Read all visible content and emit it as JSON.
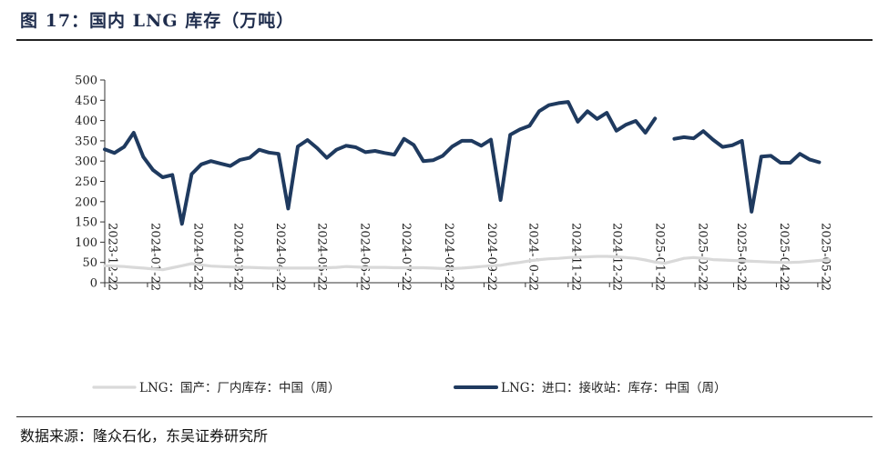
{
  "title": "图 17：国内 LNG 库存（万吨）",
  "source": "数据来源：隆众石化，东吴证券研究所",
  "colors": {
    "domestic": "#d9d9d9",
    "import": "#1f3a5f",
    "axis": "#333333",
    "title": "#1f2d4d"
  },
  "chart_data": {
    "type": "line",
    "title": "",
    "xlabel": "",
    "ylabel": "",
    "ylim": [
      0,
      500
    ],
    "yticks": [
      "0",
      "50",
      "100",
      "150",
      "200",
      "250",
      "300",
      "350",
      "400",
      "450",
      "500"
    ],
    "xtick_labels": [
      "2023-12-22",
      "2024-01-22",
      "2024-02-22",
      "2024-03-22",
      "2024-04-22",
      "2024-05-22",
      "2024-06-22",
      "2024-07-22",
      "2024-08-22",
      "2024-09-22",
      "2024-10-22",
      "2024-11-22",
      "2024-12-22",
      "2025-01-22",
      "2025-02-22",
      "2025-03-22",
      "2025-04-22",
      "2025-05-22"
    ],
    "grid": false,
    "legend": "bottom",
    "series": [
      {
        "name": "LNG：国产：厂内库存：中国（周）",
        "points": [
          [
            "2023-12-22",
            42
          ],
          [
            "2023-12-29",
            41
          ],
          [
            "2024-01-05",
            40
          ],
          [
            "2024-01-12",
            38
          ],
          [
            "2024-01-19",
            36
          ],
          [
            "2024-01-26",
            34
          ],
          [
            "2024-02-02",
            32
          ],
          [
            "2024-02-09",
            37
          ],
          [
            "2024-02-16",
            42
          ],
          [
            "2024-02-23",
            47
          ],
          [
            "2024-03-01",
            44
          ],
          [
            "2024-03-08",
            41
          ],
          [
            "2024-03-15",
            40
          ],
          [
            "2024-03-22",
            39
          ],
          [
            "2024-03-29",
            38
          ],
          [
            "2024-04-05",
            38
          ],
          [
            "2024-04-12",
            37
          ],
          [
            "2024-04-19",
            36
          ],
          [
            "2024-04-26",
            36
          ],
          [
            "2024-05-03",
            36
          ],
          [
            "2024-05-10",
            36
          ],
          [
            "2024-05-17",
            36
          ],
          [
            "2024-05-24",
            36
          ],
          [
            "2024-05-31",
            37
          ],
          [
            "2024-06-07",
            38
          ],
          [
            "2024-06-14",
            40
          ],
          [
            "2024-06-21",
            39
          ],
          [
            "2024-06-28",
            38
          ],
          [
            "2024-07-05",
            38
          ],
          [
            "2024-07-12",
            38
          ],
          [
            "2024-07-19",
            37
          ],
          [
            "2024-07-26",
            37
          ],
          [
            "2024-08-02",
            37
          ],
          [
            "2024-08-09",
            37
          ],
          [
            "2024-08-16",
            36
          ],
          [
            "2024-08-23",
            35
          ],
          [
            "2024-08-30",
            35
          ],
          [
            "2024-09-06",
            36
          ],
          [
            "2024-09-13",
            38
          ],
          [
            "2024-09-20",
            40
          ],
          [
            "2024-09-27",
            42
          ],
          [
            "2024-10-04",
            43
          ],
          [
            "2024-10-11",
            47
          ],
          [
            "2024-10-18",
            50
          ],
          [
            "2024-10-25",
            54
          ],
          [
            "2024-11-01",
            57
          ],
          [
            "2024-11-08",
            59
          ],
          [
            "2024-11-15",
            60
          ],
          [
            "2024-11-22",
            62
          ],
          [
            "2024-11-29",
            63
          ],
          [
            "2024-12-06",
            64
          ],
          [
            "2024-12-13",
            65
          ],
          [
            "2024-12-20",
            65
          ],
          [
            "2024-12-27",
            64
          ],
          [
            "2025-01-03",
            62
          ],
          [
            "2025-01-10",
            60
          ],
          [
            "2025-01-17",
            56
          ],
          [
            "2025-01-24",
            51
          ],
          [
            "2025-01-31",
            48
          ],
          [
            "2025-02-07",
            54
          ],
          [
            "2025-02-14",
            60
          ],
          [
            "2025-02-21",
            62
          ],
          [
            "2025-02-28",
            60
          ],
          [
            "2025-03-07",
            57
          ],
          [
            "2025-03-14",
            56
          ],
          [
            "2025-03-21",
            55
          ],
          [
            "2025-03-28",
            54
          ],
          [
            "2025-04-04",
            53
          ],
          [
            "2025-04-11",
            52
          ],
          [
            "2025-04-18",
            51
          ],
          [
            "2025-04-25",
            50
          ],
          [
            "2025-05-02",
            50
          ],
          [
            "2025-05-09",
            51
          ],
          [
            "2025-05-16",
            53
          ],
          [
            "2025-05-23",
            55
          ],
          [
            "2025-05-30",
            57
          ]
        ]
      },
      {
        "name": "LNG：进口：接收站：库存：中国（周）",
        "points": [
          [
            "2023-12-22",
            329
          ],
          [
            "2023-12-29",
            320
          ],
          [
            "2024-01-05",
            335
          ],
          [
            "2024-01-12",
            370
          ],
          [
            "2024-01-19",
            310
          ],
          [
            "2024-01-26",
            278
          ],
          [
            "2024-02-02",
            260
          ],
          [
            "2024-02-09",
            266
          ],
          [
            "2024-02-16",
            145
          ],
          [
            "2024-02-23",
            268
          ],
          [
            "2024-03-01",
            292
          ],
          [
            "2024-03-08",
            300
          ],
          [
            "2024-03-15",
            294
          ],
          [
            "2024-03-22",
            288
          ],
          [
            "2024-03-29",
            303
          ],
          [
            "2024-04-05",
            308
          ],
          [
            "2024-04-12",
            328
          ],
          [
            "2024-04-19",
            321
          ],
          [
            "2024-04-26",
            318
          ],
          [
            "2024-05-03",
            183
          ],
          [
            "2024-05-10",
            336
          ],
          [
            "2024-05-17",
            352
          ],
          [
            "2024-05-24",
            332
          ],
          [
            "2024-05-31",
            308
          ],
          [
            "2024-06-07",
            328
          ],
          [
            "2024-06-14",
            338
          ],
          [
            "2024-06-21",
            334
          ],
          [
            "2024-06-28",
            322
          ],
          [
            "2024-07-05",
            325
          ],
          [
            "2024-07-12",
            320
          ],
          [
            "2024-07-19",
            316
          ],
          [
            "2024-07-26",
            355
          ],
          [
            "2024-08-02",
            340
          ],
          [
            "2024-08-09",
            300
          ],
          [
            "2024-08-16",
            302
          ],
          [
            "2024-08-23",
            313
          ],
          [
            "2024-08-30",
            336
          ],
          [
            "2024-09-06",
            350
          ],
          [
            "2024-09-13",
            350
          ],
          [
            "2024-09-20",
            338
          ],
          [
            "2024-09-27",
            353
          ],
          [
            "2024-10-04",
            204
          ],
          [
            "2024-10-11",
            365
          ],
          [
            "2024-10-18",
            378
          ],
          [
            "2024-10-25",
            387
          ],
          [
            "2024-11-01",
            423
          ],
          [
            "2024-11-08",
            438
          ],
          [
            "2024-11-15",
            443
          ],
          [
            "2024-11-22",
            446
          ],
          [
            "2024-11-29",
            397
          ],
          [
            "2024-12-06",
            423
          ],
          [
            "2024-12-13",
            404
          ],
          [
            "2024-12-20",
            419
          ],
          [
            "2024-12-27",
            375
          ],
          [
            "2025-01-03",
            390
          ],
          [
            "2025-01-10",
            399
          ],
          [
            "2025-01-17",
            370
          ],
          [
            "2025-01-24",
            405
          ],
          [
            "2025-01-31",
            null
          ],
          [
            "2025-02-07",
            355
          ],
          [
            "2025-02-14",
            359
          ],
          [
            "2025-02-21",
            356
          ],
          [
            "2025-02-28",
            374
          ],
          [
            "2025-03-07",
            353
          ],
          [
            "2025-03-14",
            335
          ],
          [
            "2025-03-21",
            339
          ],
          [
            "2025-03-28",
            350
          ],
          [
            "2025-04-04",
            175
          ],
          [
            "2025-04-11",
            311
          ],
          [
            "2025-04-18",
            313
          ],
          [
            "2025-04-25",
            296
          ],
          [
            "2025-05-02",
            296
          ],
          [
            "2025-05-09",
            318
          ],
          [
            "2025-05-16",
            304
          ],
          [
            "2025-05-23",
            297
          ]
        ]
      }
    ]
  }
}
